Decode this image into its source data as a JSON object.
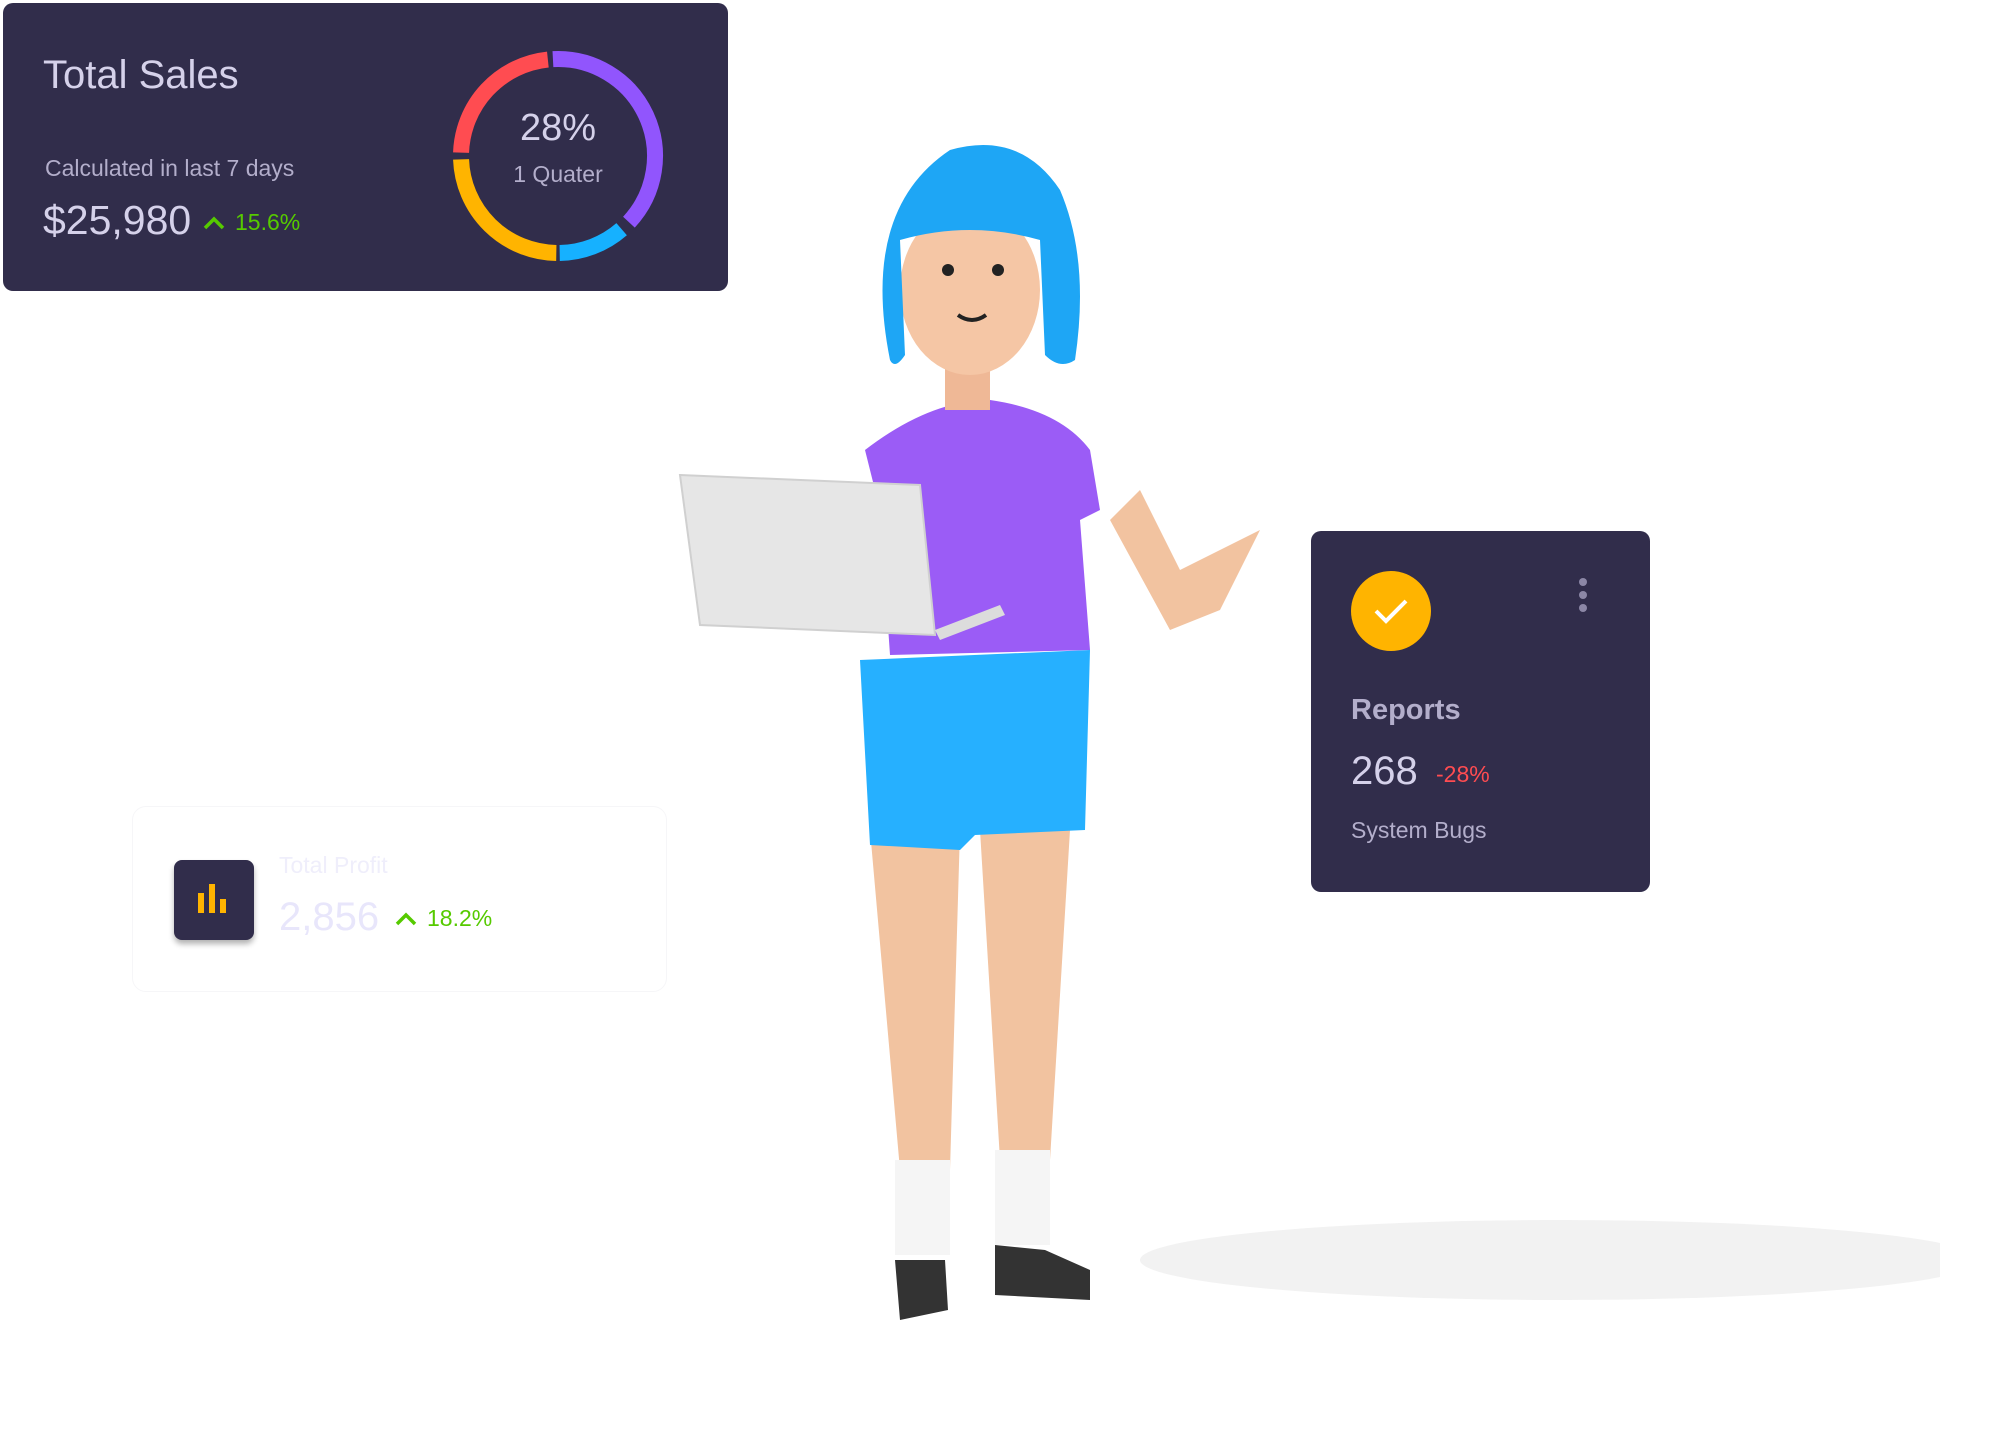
{
  "total_sales": {
    "title": "Total Sales",
    "subtitle": "Calculated in last 7 days",
    "amount": "$25,980",
    "trend": "15.6%",
    "trend_direction": "up",
    "donut": {
      "percent": "28%",
      "label": "1 Quater",
      "segments": [
        {
          "color": "#9155fd",
          "from": 357,
          "to": 133
        },
        {
          "color": "#16b1ff",
          "from": 139,
          "to": 179
        },
        {
          "color": "#ffb400",
          "from": 181,
          "to": 268
        },
        {
          "color": "#ff4c51",
          "from": 272,
          "to": 354
        }
      ]
    }
  },
  "reports": {
    "icon": "check-icon",
    "title": "Reports",
    "value": "268",
    "change": "-28%",
    "caption": "System Bugs"
  },
  "total_profit": {
    "icon": "bar-chart-icon",
    "title": "Total Profit",
    "value": "2,856",
    "trend": "18.2%",
    "trend_direction": "up"
  },
  "colors": {
    "card": "#312d4b",
    "success": "#56ca00",
    "error": "#ff4c51",
    "warning": "#ffb400"
  }
}
